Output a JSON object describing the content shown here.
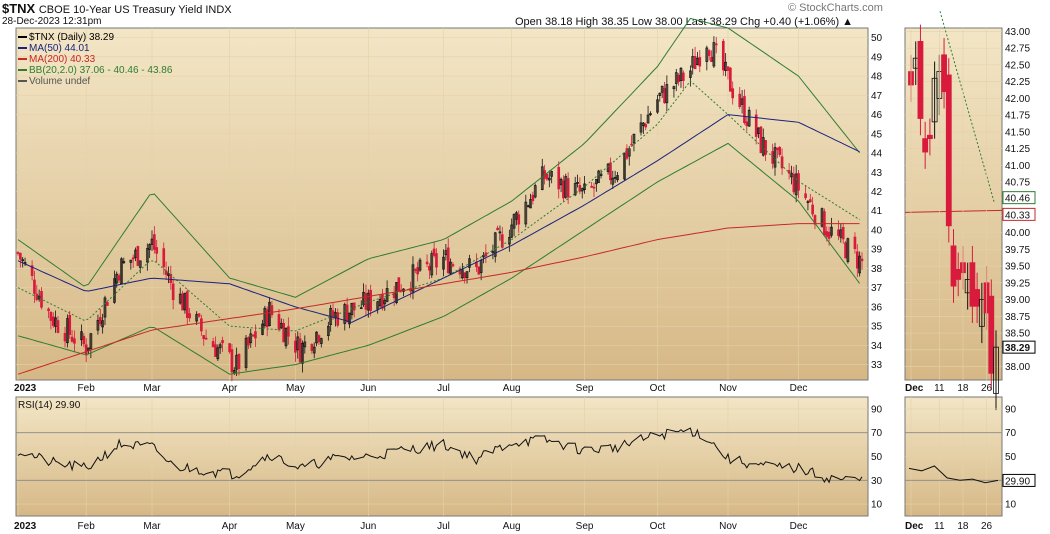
{
  "header": {
    "symbol": "$TNX",
    "name": "CBOE 10-Year US Treasury Yield INDX",
    "datetime": "28-Dec-2023 12:31pm",
    "watermark": "© StockCharts.com",
    "ohlc": "Open 38.18  High 38.35  Low 38.00  Last 38.29  Chg +0.40 (+1.06%) ▲"
  },
  "legend": [
    {
      "text": "$TNX (Daily) 38.29",
      "color": "#000000"
    },
    {
      "text": "MA(50) 44.01",
      "color": "#1a237e"
    },
    {
      "text": "MA(200) 40.33",
      "color": "#c62828"
    },
    {
      "text": "BB(20,2.0) 37.06 - 40.46 - 43.86",
      "color": "#2e7d32"
    },
    {
      "text": "Volume undef",
      "color": "#555555"
    }
  ],
  "rsi_label": "RSI(14) 29.90",
  "colors": {
    "up": "#111111",
    "down": "#d81b3c",
    "ma50": "#1a237e",
    "ma200": "#c62828",
    "bb": "#2e7d32",
    "rsi": "#111111",
    "bg_top": "#f3e6c6",
    "bg_bottom": "#d6b886"
  },
  "chart_data": [
    {
      "type": "candlestick",
      "title": "$TNX (Daily) 38.29",
      "x_tick_labels": [
        "2023",
        "Feb",
        "Mar",
        "Apr",
        "May",
        "Jun",
        "Jul",
        "Aug",
        "Sep",
        "Oct",
        "Nov",
        "Dec"
      ],
      "y_ticks": [
        33,
        34,
        35,
        36,
        37,
        38,
        39,
        40,
        41,
        42,
        43,
        44,
        45,
        46,
        47,
        48,
        49,
        50
      ],
      "ylim": [
        32.2,
        50.5
      ],
      "marker_labels": [
        "40.33",
        "38.29"
      ],
      "series": [
        {
          "name": "$TNX",
          "x": [
            "2023-01-03",
            "2023-01-17",
            "2023-02-01",
            "2023-02-15",
            "2023-03-01",
            "2023-03-10",
            "2023-03-24",
            "2023-04-06",
            "2023-04-20",
            "2023-05-03",
            "2023-05-17",
            "2023-06-01",
            "2023-06-15",
            "2023-07-03",
            "2023-07-17",
            "2023-08-01",
            "2023-08-15",
            "2023-09-01",
            "2023-09-15",
            "2023-10-02",
            "2023-10-16",
            "2023-10-23",
            "2023-11-01",
            "2023-11-15",
            "2023-12-01",
            "2023-12-13",
            "2023-12-28"
          ],
          "values": [
            38.8,
            35.5,
            33.9,
            38.0,
            39.3,
            37.0,
            34.4,
            32.9,
            35.8,
            33.8,
            35.5,
            36.2,
            37.2,
            38.5,
            37.9,
            40.3,
            42.8,
            41.8,
            43.2,
            46.8,
            48.3,
            49.9,
            47.8,
            44.5,
            42.2,
            40.1,
            38.29
          ]
        },
        {
          "name": "MA(50)",
          "x": [
            "2023-01-03",
            "2023-02-01",
            "2023-03-01",
            "2023-04-03",
            "2023-05-01",
            "2023-05-25",
            "2023-07-03",
            "2023-08-01",
            "2023-09-01",
            "2023-10-02",
            "2023-11-01",
            "2023-12-01",
            "2023-12-28"
          ],
          "values": [
            38.4,
            36.8,
            37.5,
            37.2,
            36.0,
            35.2,
            37.5,
            39.2,
            41.3,
            43.6,
            46.0,
            45.6,
            44.01
          ]
        },
        {
          "name": "MA(200)",
          "x": [
            "2023-01-03",
            "2023-03-01",
            "2023-05-01",
            "2023-07-03",
            "2023-08-01",
            "2023-09-01",
            "2023-10-02",
            "2023-11-01",
            "2023-12-01",
            "2023-12-28"
          ],
          "values": [
            32.5,
            34.8,
            35.9,
            37.2,
            37.8,
            38.6,
            39.5,
            40.1,
            40.33,
            40.33
          ]
        },
        {
          "name": "BB upper",
          "x": [
            "2023-01-03",
            "2023-02-01",
            "2023-03-01",
            "2023-04-03",
            "2023-05-01",
            "2023-06-01",
            "2023-07-03",
            "2023-08-01",
            "2023-09-01",
            "2023-10-02",
            "2023-10-16",
            "2023-11-01",
            "2023-12-01",
            "2023-12-28"
          ],
          "values": [
            39.5,
            37.0,
            42.0,
            37.5,
            36.5,
            38.5,
            39.5,
            41.5,
            44.5,
            48.5,
            51.0,
            50.5,
            48.0,
            43.86
          ]
        },
        {
          "name": "BB lower",
          "x": [
            "2023-01-03",
            "2023-02-01",
            "2023-03-01",
            "2023-04-03",
            "2023-05-01",
            "2023-06-01",
            "2023-07-03",
            "2023-08-01",
            "2023-09-01",
            "2023-10-02",
            "2023-11-01",
            "2023-12-01",
            "2023-12-28"
          ],
          "values": [
            34.5,
            33.5,
            35.0,
            32.5,
            33.0,
            34.0,
            35.5,
            37.5,
            40.0,
            42.5,
            44.5,
            41.5,
            37.06
          ]
        }
      ]
    },
    {
      "type": "candlestick",
      "title": "Dec detail",
      "x_tick_labels": [
        "Dec",
        "11",
        "18",
        "26"
      ],
      "y_ticks": [
        38.0,
        38.25,
        38.5,
        38.75,
        39.0,
        39.25,
        39.5,
        39.75,
        40.0,
        40.25,
        40.5,
        40.75,
        41.0,
        41.25,
        41.5,
        41.75,
        42.0,
        42.25,
        42.5,
        42.75,
        43.0
      ],
      "y_tick_labels": [
        "38.00",
        "38.25",
        "38.50",
        "38.75",
        "39.00",
        "39.25",
        "39.50",
        "39.75",
        "40.00",
        "40.25",
        "40.50",
        "40.75",
        "41.00",
        "41.25",
        "41.50",
        "41.75",
        "42.00",
        "42.25",
        "42.50",
        "42.75",
        "43.00"
      ],
      "ylim": [
        37.8,
        43.05
      ],
      "marker_labels": [
        "40.46",
        "40.33",
        "38.29"
      ],
      "series": [
        {
          "name": "$TNX",
          "x": [
            "Dec 1",
            "Dec 4",
            "Dec 5",
            "Dec 6",
            "Dec 7",
            "Dec 8",
            "Dec 11",
            "Dec 12",
            "Dec 13",
            "Dec 14",
            "Dec 15",
            "Dec 18",
            "Dec 19",
            "Dec 20",
            "Dec 21",
            "Dec 22",
            "Dec 26",
            "Dec 27",
            "Dec 28"
          ],
          "values": [
            42.2,
            42.6,
            41.7,
            41.2,
            41.4,
            42.3,
            42.4,
            42.1,
            40.1,
            39.2,
            39.3,
            39.4,
            39.3,
            38.9,
            38.9,
            39.0,
            38.8,
            37.9,
            38.29
          ]
        },
        {
          "name": "MA(200)",
          "x": [
            "Dec 1",
            "Dec 28"
          ],
          "values": [
            40.3,
            40.33
          ]
        },
        {
          "name": "BB",
          "x": [
            "Dec 1",
            "Dec 28"
          ],
          "values": [
            43.3,
            40.46
          ]
        }
      ]
    },
    {
      "type": "line",
      "title": "RSI(14) 29.90",
      "x_tick_labels": [
        "2023",
        "Feb",
        "Mar",
        "Apr",
        "May",
        "Jun",
        "Jul",
        "Aug",
        "Sep",
        "Oct",
        "Nov",
        "Dec"
      ],
      "y_ticks": [
        10,
        30,
        50,
        70,
        90
      ],
      "ylim": [
        0,
        100
      ],
      "series": [
        {
          "name": "RSI(14)",
          "x": [
            "2023-01-03",
            "2023-01-17",
            "2023-02-01",
            "2023-02-15",
            "2023-03-01",
            "2023-03-10",
            "2023-03-24",
            "2023-04-06",
            "2023-04-20",
            "2023-05-03",
            "2023-05-17",
            "2023-06-01",
            "2023-06-15",
            "2023-07-03",
            "2023-07-17",
            "2023-08-01",
            "2023-08-15",
            "2023-09-01",
            "2023-09-15",
            "2023-10-02",
            "2023-10-16",
            "2023-10-23",
            "2023-11-01",
            "2023-11-15",
            "2023-12-01",
            "2023-12-13",
            "2023-12-28"
          ],
          "values": [
            55,
            45,
            40,
            60,
            58,
            42,
            38,
            35,
            52,
            40,
            48,
            50,
            55,
            60,
            48,
            62,
            64,
            55,
            58,
            68,
            72,
            66,
            48,
            42,
            40,
            32,
            29.9
          ]
        }
      ]
    },
    {
      "type": "line",
      "title": "RSI Dec detail",
      "x_tick_labels": [
        "Dec",
        "11",
        "18",
        "26"
      ],
      "y_ticks": [
        10,
        30,
        50,
        70,
        90
      ],
      "marker_labels": [
        "29.90"
      ],
      "ylim": [
        0,
        100
      ],
      "series": [
        {
          "name": "RSI(14)",
          "x": [
            "Dec 1",
            "Dec 6",
            "Dec 11",
            "Dec 14",
            "Dec 18",
            "Dec 21",
            "Dec 26",
            "Dec 28"
          ],
          "values": [
            40,
            38,
            42,
            32,
            30,
            31,
            28,
            29.9
          ]
        }
      ]
    }
  ]
}
